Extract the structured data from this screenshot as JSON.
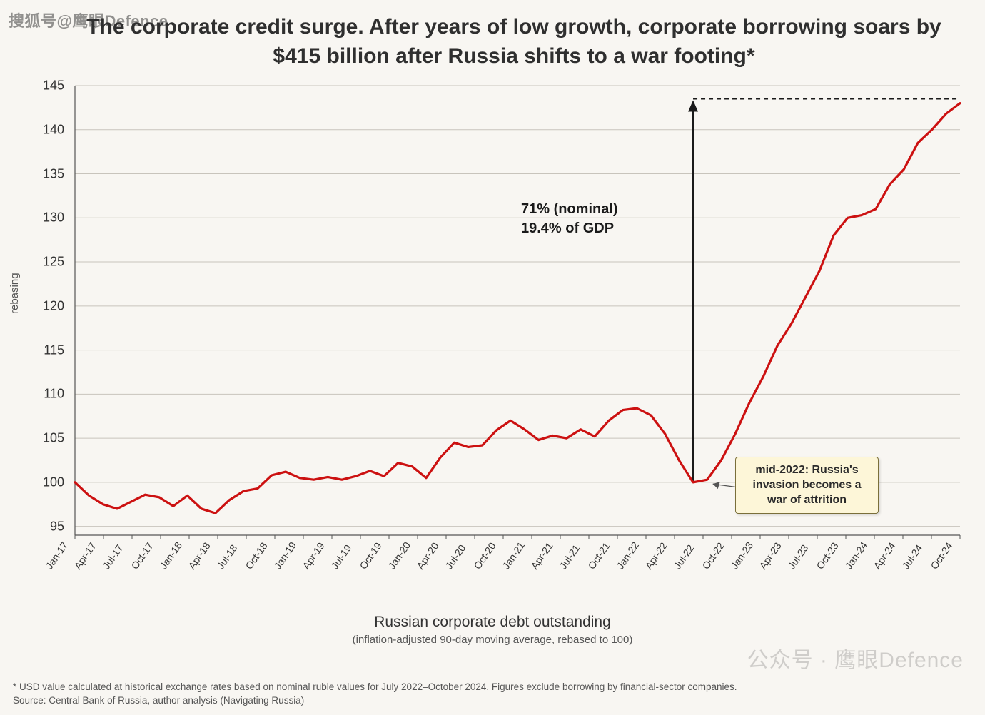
{
  "watermarks": {
    "top_left": "搜狐号@鹰眼Defence",
    "bottom_right": "公众号 · 鹰眼Defence"
  },
  "title": "The corporate credit surge.  After years of low growth, corporate borrowing soars by $415 billion after Russia shifts to a war footing*",
  "chart": {
    "type": "line",
    "ylabel": "rebasing",
    "xlabel": "Russian corporate debt outstanding",
    "xlabel_sub": "(inflation-adjusted 90-day moving average, rebased to 100)",
    "ylim": [
      94,
      145
    ],
    "yticks": [
      95,
      100,
      105,
      110,
      115,
      120,
      125,
      130,
      135,
      140,
      145
    ],
    "xticks": [
      "Jan-17",
      "Apr-17",
      "Jul-17",
      "Oct-17",
      "Jan-18",
      "Apr-18",
      "Jul-18",
      "Oct-18",
      "Jan-19",
      "Apr-19",
      "Jul-19",
      "Oct-19",
      "Jan-20",
      "Apr-20",
      "Jul-20",
      "Oct-20",
      "Jan-21",
      "Apr-21",
      "Jul-21",
      "Oct-21",
      "Jan-22",
      "Apr-22",
      "Jul-22",
      "Oct-22",
      "Jan-23",
      "Apr-23",
      "Jul-23",
      "Oct-23",
      "Jan-24",
      "Apr-24",
      "Jul-24",
      "Oct-24"
    ],
    "line_color": "#cc1111",
    "line_width": 3.2,
    "background_color": "#f8f6f2",
    "grid_color": "#c8c4bc",
    "axis_color": "#555555",
    "series": [
      100.0,
      98.5,
      97.5,
      97.0,
      97.8,
      98.6,
      98.3,
      97.3,
      98.5,
      97.0,
      96.5,
      98.0,
      99.0,
      99.3,
      100.8,
      101.2,
      100.5,
      100.3,
      100.6,
      100.3,
      100.7,
      101.3,
      100.7,
      102.2,
      101.8,
      100.5,
      102.8,
      104.5,
      104.0,
      104.2,
      105.9,
      107.0,
      106.0,
      104.8,
      105.3,
      105.0,
      106.0,
      105.2,
      107.0,
      108.2,
      108.4,
      107.6,
      105.5,
      102.5,
      100.0,
      100.3,
      102.5,
      105.5,
      109.0,
      112.0,
      115.5,
      118.0,
      121.0,
      124.0,
      128.0,
      130.0,
      130.3,
      131.0,
      133.8,
      135.5,
      138.5,
      140.0,
      141.8,
      143.0
    ],
    "reference_line": {
      "y": 143.5,
      "color": "#1a1a1a",
      "dash": "6,5",
      "width": 2
    },
    "arrow": {
      "x_index": 44,
      "y_from": 100.0,
      "y_to": 143.5,
      "color": "#1a1a1a",
      "width": 2.5
    }
  },
  "annotations": {
    "main_line1": "71% (nominal)",
    "main_line2": "19.4% of GDP",
    "callout": "mid-2022: Russia's invasion becomes a war of attrition"
  },
  "footnote_line1": "* USD value calculated at historical exchange rates based on nominal ruble values for July 2022–October 2024.  Figures exclude borrowing by financial-sector companies.",
  "footnote_line2": "Source: Central Bank of Russia, author analysis (Navigating Russia)"
}
